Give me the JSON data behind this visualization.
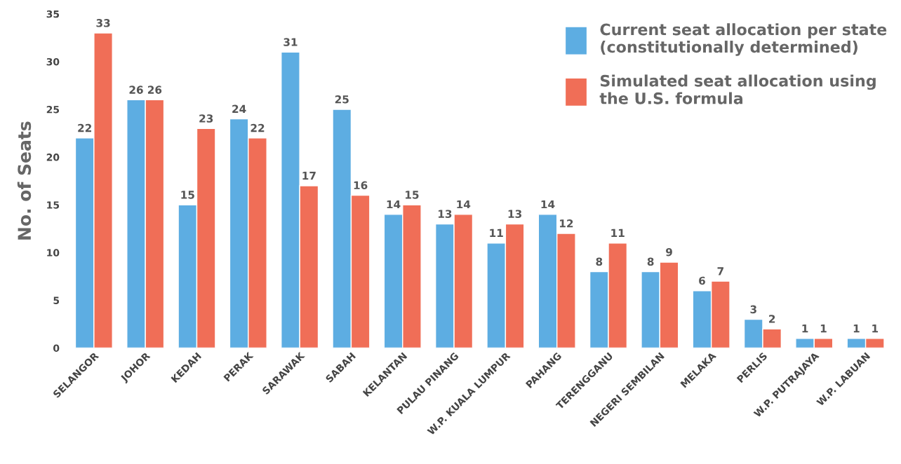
{
  "chart_data": {
    "type": "bar",
    "ylabel": "No. of Seats",
    "categories": [
      "SELANGOR",
      "JOHOR",
      "KEDAH",
      "PERAK",
      "SARAWAK",
      "SABAH",
      "KELANTAN",
      "PULAU PINANG",
      "W.P. KUALA LUMPUR",
      "PAHANG",
      "TERENGGANU",
      "NEGERI SEMBILAN",
      "MELAKA",
      "PERLIS",
      "W.P. PUTRAJAYA",
      "W.P. LABUAN"
    ],
    "series": [
      {
        "name": "Current seat allocation per state\n(constitutionally determined)",
        "color": "#5dade2",
        "values": [
          22,
          26,
          15,
          24,
          31,
          25,
          14,
          13,
          11,
          14,
          8,
          8,
          6,
          3,
          1,
          1
        ]
      },
      {
        "name": "Simulated seat allocation using\nthe U.S. formula",
        "color": "#f06e57",
        "values": [
          33,
          26,
          23,
          22,
          17,
          16,
          15,
          14,
          13,
          12,
          11,
          9,
          7,
          2,
          1,
          1
        ]
      }
    ],
    "ylim": [
      0,
      35
    ],
    "yticks": [
      0,
      5,
      10,
      15,
      20,
      25,
      30,
      35
    ],
    "data_labels": true,
    "grid": false,
    "legend": "top right"
  }
}
